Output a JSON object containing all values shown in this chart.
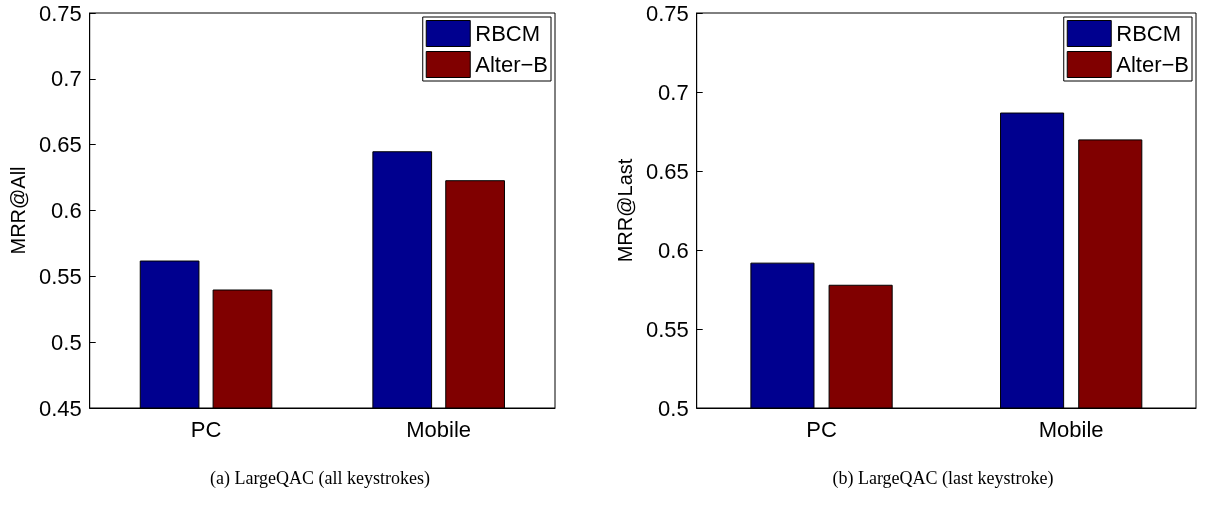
{
  "chart_data": [
    {
      "type": "bar",
      "title": "(a) LargeQAC (all keystrokes)",
      "ylabel": "MRR@All",
      "categories": [
        "PC",
        "Mobile"
      ],
      "series": [
        {
          "name": "RBCM",
          "color": "#00008f",
          "values": [
            0.562,
            0.645
          ]
        },
        {
          "name": "Alter−B",
          "color": "#800000",
          "values": [
            0.54,
            0.623
          ]
        }
      ],
      "ylim": [
        0.45,
        0.75
      ],
      "yticks": [
        0.45,
        0.5,
        0.55,
        0.6,
        0.65,
        0.7,
        0.75
      ],
      "legend": "top right"
    },
    {
      "type": "bar",
      "title": "(b) LargeQAC (last keystroke)",
      "ylabel": "MRR@Last",
      "categories": [
        "PC",
        "Mobile"
      ],
      "series": [
        {
          "name": "RBCM",
          "color": "#00008f",
          "values": [
            0.592,
            0.687
          ]
        },
        {
          "name": "Alter−B",
          "color": "#800000",
          "values": [
            0.578,
            0.67
          ]
        }
      ],
      "ylim": [
        0.5,
        0.75
      ],
      "yticks": [
        0.5,
        0.55,
        0.6,
        0.65,
        0.7,
        0.75
      ],
      "legend": "top right"
    }
  ]
}
